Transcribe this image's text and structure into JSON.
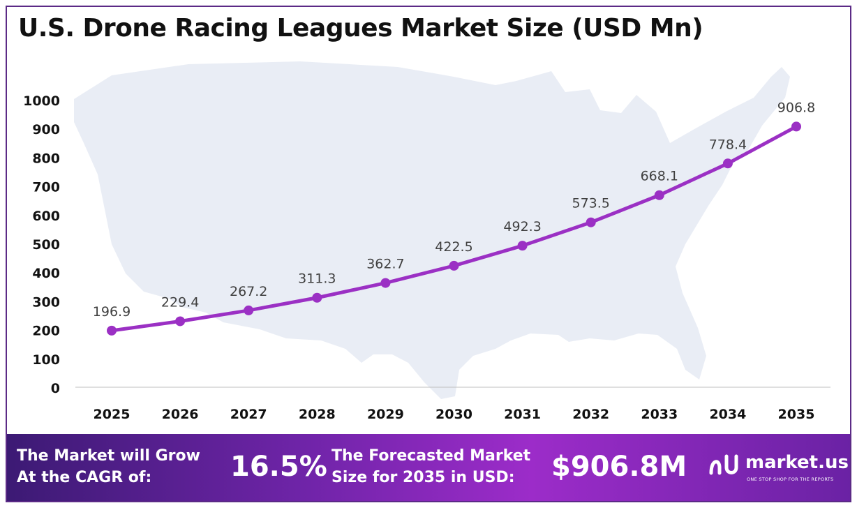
{
  "title": "U.S. Drone Racing Leagues Market Size (USD Mn)",
  "chart_data": {
    "type": "line",
    "title": "U.S. Drone Racing Leagues Market Size (USD Mn)",
    "x": [
      "2025",
      "2026",
      "2027",
      "2028",
      "2029",
      "2030",
      "2031",
      "2032",
      "2033",
      "2034",
      "2035"
    ],
    "series": [
      {
        "values": [
          196.9,
          229.4,
          267.2,
          311.3,
          362.7,
          422.5,
          492.3,
          573.5,
          668.1,
          778.4,
          906.8
        ]
      }
    ],
    "data_labels": [
      "196.9",
      "229.4",
      "267.2",
      "311.3",
      "362.7",
      "422.5",
      "492.3",
      "573.5",
      "668.1",
      "778.4",
      "906.8"
    ],
    "yticks": [
      0,
      100,
      200,
      300,
      400,
      500,
      600,
      700,
      800,
      900,
      1000
    ],
    "ylim": [
      0,
      1000
    ],
    "grid": false,
    "legend": "none",
    "background": "U.S. map silhouette",
    "colors": {
      "line": "#9b30c4",
      "marker": "#9b30c4",
      "map": "#e9edf5",
      "label": "#404040"
    }
  },
  "footer": {
    "cagr_text_line1": "The Market will Grow",
    "cagr_text_line2": "At the CAGR of:",
    "cagr_value": "16.5%",
    "forecast_text_line1": "The Forecasted Market",
    "forecast_text_line2": "Size for 2035 in USD:",
    "forecast_value": "$906.8M"
  },
  "brand": {
    "name": "market.us",
    "tagline": "ONE STOP SHOP FOR THE REPORTS",
    "logo_icon": "market-us-logo-icon"
  }
}
